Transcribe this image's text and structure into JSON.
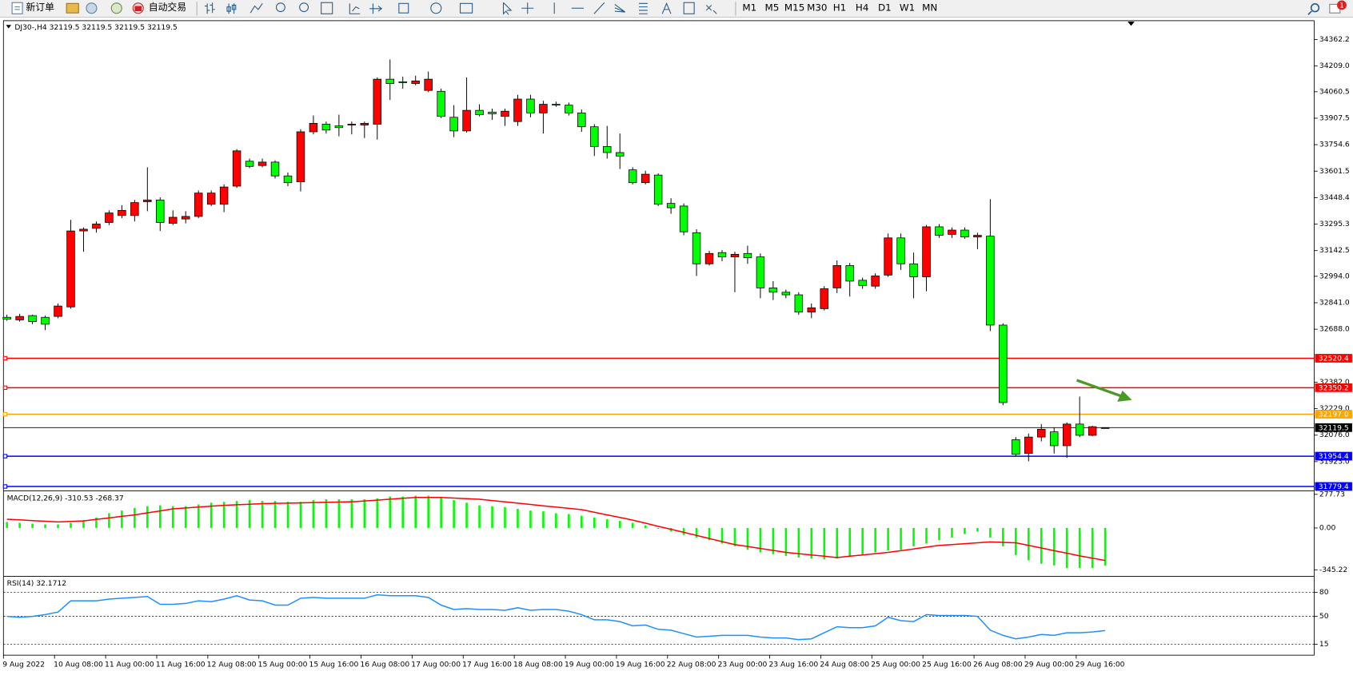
{
  "toolbar": {
    "new_order": "新订单",
    "auto_trading": "自动交易",
    "timeframes": [
      "M1",
      "M5",
      "M15",
      "M30",
      "H1",
      "H4",
      "D1",
      "W1",
      "MN"
    ],
    "notifications": 1
  },
  "chart_data": [
    {
      "type": "candlestick",
      "title": "DJ30-,H4 32119.5 32119.5 32119.5 32119.5",
      "categories": [
        "9 Aug 2022",
        null,
        null,
        null,
        "10 Aug 08:00",
        null,
        null,
        null,
        "11 Aug 00:00",
        null,
        null,
        null,
        "11 Aug 16:00",
        null,
        null,
        null,
        "12 Aug 08:00",
        null,
        null,
        null,
        "15 Aug 00:00",
        null,
        null,
        null,
        "15 Aug 16:00",
        null,
        null,
        null,
        "16 Aug 08:00",
        null,
        null,
        null,
        "17 Aug 00:00",
        null,
        null,
        null,
        "17 Aug 16:00",
        null,
        null,
        null,
        "18 Aug 08:00",
        null,
        null,
        null,
        "19 Aug 00:00",
        null,
        null,
        null,
        "19 Aug 16:00",
        null,
        null,
        null,
        "22 Aug 08:00",
        null,
        null,
        null,
        "23 Aug 00:00",
        null,
        null,
        null,
        "23 Aug 16:00",
        null,
        null,
        null,
        "24 Aug 08:00",
        null,
        null,
        null,
        "25 Aug 00:00",
        null,
        null,
        null,
        "25 Aug 16:00",
        null,
        null,
        null,
        "26 Aug 08:00",
        null,
        null,
        null,
        "29 Aug 00:00",
        null,
        null,
        null,
        "29 Aug 16:00",
        null,
        null
      ],
      "open": [
        32757,
        32742,
        32767,
        32757,
        32762,
        32817,
        33256,
        33271,
        33305,
        33345,
        33345,
        33425,
        33435,
        33300,
        33325,
        33340,
        33410,
        33410,
        33515,
        33659,
        33634,
        33654,
        33574,
        33540,
        33829,
        33873,
        33863,
        33868,
        33868,
        33873,
        34133,
        34118,
        34108,
        34068,
        34063,
        33913,
        33834,
        33953,
        33943,
        33918,
        33888,
        34018,
        33938,
        33988,
        33983,
        33938,
        33858,
        33744,
        33709,
        33609,
        33535,
        33579,
        33415,
        33400,
        33246,
        33066,
        33131,
        33106,
        33126,
        33106,
        32927,
        32902,
        32887,
        32787,
        32807,
        32927,
        33056,
        32971,
        32937,
        33001,
        33216,
        33066,
        32991,
        33280,
        33236,
        33261,
        33221,
        33226,
        32712,
        32050,
        31970,
        32065,
        32095,
        32015,
        32140,
        32075,
        32119.5
      ],
      "high": [
        32772,
        32777,
        32772,
        32767,
        32837,
        33320,
        33276,
        33311,
        33375,
        33405,
        33435,
        33624,
        33450,
        33375,
        33370,
        33490,
        33490,
        33525,
        33729,
        33674,
        33674,
        33664,
        33594,
        33844,
        33923,
        33888,
        33928,
        33888,
        33888,
        34143,
        34247,
        34148,
        34153,
        34177,
        34078,
        33983,
        34143,
        33988,
        33963,
        33963,
        34043,
        34043,
        34008,
        34003,
        33998,
        33958,
        33873,
        33863,
        33819,
        33624,
        33604,
        33589,
        33445,
        33415,
        33266,
        33141,
        33146,
        33136,
        33171,
        33126,
        32966,
        32917,
        32902,
        32837,
        32937,
        33086,
        33071,
        32986,
        33011,
        33241,
        33241,
        33131,
        33290,
        33296,
        33276,
        33276,
        33246,
        33440,
        32722,
        32065,
        32085,
        32140,
        32120,
        32150,
        32299,
        32130,
        32119.5
      ],
      "low": [
        32737,
        32732,
        32717,
        32683,
        32752,
        32807,
        33136,
        33246,
        33290,
        33330,
        33311,
        33370,
        33256,
        33290,
        33300,
        33330,
        33400,
        33365,
        33505,
        33619,
        33624,
        33559,
        33515,
        33485,
        33814,
        33819,
        33803,
        33814,
        33793,
        33784,
        34013,
        34078,
        34098,
        34058,
        33908,
        33798,
        33824,
        33918,
        33898,
        33863,
        33863,
        33913,
        33819,
        33973,
        33923,
        33829,
        33689,
        33674,
        33614,
        33525,
        33525,
        33400,
        33355,
        33231,
        32996,
        33056,
        33081,
        32902,
        33066,
        32867,
        32857,
        32867,
        32772,
        32752,
        32797,
        32897,
        32877,
        32922,
        32922,
        32991,
        33031,
        32867,
        32907,
        33216,
        33216,
        33211,
        33151,
        32677,
        32249,
        31955,
        31925,
        32040,
        31970,
        31945,
        32065,
        32070,
        32119.5
      ],
      "close": [
        32747,
        32762,
        32732,
        32717,
        32822,
        33256,
        33266,
        33296,
        33360,
        33375,
        33420,
        33435,
        33305,
        33335,
        33340,
        33475,
        33475,
        33510,
        33719,
        33629,
        33654,
        33574,
        33535,
        33829,
        33878,
        33839,
        33853,
        33873,
        33878,
        34133,
        34108,
        34113,
        34123,
        34133,
        33918,
        33834,
        33953,
        33928,
        33933,
        33948,
        34018,
        33938,
        33988,
        33983,
        33938,
        33858,
        33744,
        33709,
        33689,
        33535,
        33584,
        33410,
        33390,
        33251,
        33066,
        33126,
        33106,
        33121,
        33101,
        32927,
        32902,
        32887,
        32787,
        32812,
        32922,
        33056,
        32966,
        32941,
        32996,
        33216,
        33066,
        32991,
        33280,
        33231,
        33261,
        33221,
        33231,
        32712,
        32264,
        31965,
        32065,
        32110,
        32015,
        32140,
        32075,
        32125,
        32119.5
      ],
      "up_color": "#ff0000",
      "down_color": "#00ff00",
      "ylim": [
        31761,
        34471
      ],
      "yticks": [
        34362.2,
        {
          "value": 34209,
          "label": "34209.0"
        },
        34060.5,
        33907.5,
        33754.6,
        33601.5,
        33448.4,
        33295.3,
        33142.5,
        {
          "value": 32994,
          "label": "32994.0"
        },
        {
          "value": 32841,
          "label": "32841.0"
        },
        {
          "value": 32688,
          "label": "32688.0"
        },
        {
          "value": 32382,
          "label": "32382.0"
        },
        {
          "value": 32229,
          "label": "32229.0"
        },
        {
          "value": 32076,
          "label": "32076.0"
        },
        {
          "value": 31923,
          "label": "31923.0"
        }
      ],
      "levels": {
        "values": [
          32520.4,
          32350.2,
          32197,
          32119.5,
          31954.4,
          31779.4
        ],
        "value_labels": [
          "32520.4",
          "32350.2",
          "32197.0",
          "32119.5",
          "31954.4",
          "31779.4"
        ],
        "colors": [
          "#ff0000",
          "#ff0000",
          "#ffa500",
          "#000000",
          "#0000ff",
          "#0000ff"
        ]
      }
    },
    {
      "type": "macd",
      "title": "MACD(12,26,9) -310.53 -268.37",
      "series": [
        {
          "style": "histogram",
          "color": "#00ff00",
          "values": [
            50,
            43,
            36,
            29,
            29,
            43,
            65,
            86,
            122,
            144,
            165,
            180,
            187,
            180,
            180,
            194,
            209,
            216,
            223,
            230,
            223,
            223,
            216,
            216,
            230,
            237,
            237,
            237,
            237,
            244,
            259,
            259,
            266,
            266,
            252,
            230,
            209,
            187,
            180,
            173,
            158,
            144,
            137,
            122,
            115,
            101,
            86,
            72,
            58,
            43,
            22,
            -7,
            -29,
            -58,
            -79,
            -101,
            -129,
            -151,
            -180,
            -201,
            -216,
            -230,
            -244,
            -252,
            -259,
            -252,
            -237,
            -223,
            -201,
            -187,
            -180,
            -151,
            -129,
            -101,
            -79,
            -50,
            -29,
            -79,
            -151,
            -223,
            -266,
            -295,
            -309,
            -331,
            -331,
            -331,
            -310.53
          ]
        },
        {
          "style": "line",
          "color": "#ff0000",
          "values": [
            72,
            67,
            61,
            56,
            50,
            54,
            58,
            71,
            83,
            96,
            108,
            125,
            141,
            158,
            165,
            173,
            180,
            187,
            192,
            196,
            201,
            203,
            205,
            207,
            210,
            212,
            214,
            216,
            223,
            230,
            238,
            245,
            252,
            252,
            252,
            247,
            242,
            237,
            226,
            216,
            205,
            194,
            183,
            173,
            162,
            151,
            130,
            108,
            87,
            65,
            40,
            14,
            -11,
            -36,
            -61,
            -87,
            -112,
            -137,
            -153,
            -169,
            -185,
            -201,
            -212,
            -223,
            -233,
            -244,
            -233,
            -223,
            -212,
            -201,
            -187,
            -173,
            -158,
            -144,
            -137,
            -130,
            -122,
            -115,
            -119,
            -122,
            -144,
            -165,
            -187,
            -208,
            -230,
            -249,
            -268.37
          ]
        }
      ],
      "ylim": [
        -388,
        295
      ],
      "yticks": [
        277.73,
        {
          "value": 0,
          "label": "0.00"
        },
        -345.22
      ]
    },
    {
      "type": "line",
      "title": "RSI(14) 32.1712",
      "series": [
        {
          "color": "#1e90ff",
          "values": [
            50,
            48.9,
            50,
            52.2,
            55.4,
            69.5,
            69.5,
            69.5,
            71.6,
            72.7,
            73.8,
            74.9,
            65.1,
            65.1,
            66.2,
            69.5,
            68.4,
            71.6,
            75.9,
            70.5,
            69.5,
            64.1,
            64.1,
            72.7,
            73.8,
            72.7,
            72.7,
            72.7,
            72.7,
            77,
            75.9,
            75.9,
            75.9,
            73.8,
            64.1,
            58.6,
            59.7,
            58.6,
            58.6,
            57.6,
            60.8,
            57.6,
            58.6,
            58.6,
            56.5,
            52.2,
            45.7,
            45.7,
            43.5,
            38.1,
            39.2,
            33.8,
            32.7,
            28.4,
            24.1,
            25.1,
            26.2,
            26.2,
            26.2,
            24.1,
            23,
            23,
            20.9,
            21.9,
            29.5,
            37,
            35.9,
            35.9,
            38.1,
            48.9,
            44.6,
            43.5,
            52.2,
            51.1,
            51.1,
            51.1,
            50,
            32.7,
            26.2,
            21.9,
            24.1,
            27.3,
            26.2,
            29.5,
            29.5,
            30.5,
            32.1712
          ]
        }
      ],
      "ylim": [
        1.4,
        98.6
      ],
      "yticks": [
        80,
        50,
        15
      ],
      "grid": "dotted"
    }
  ]
}
